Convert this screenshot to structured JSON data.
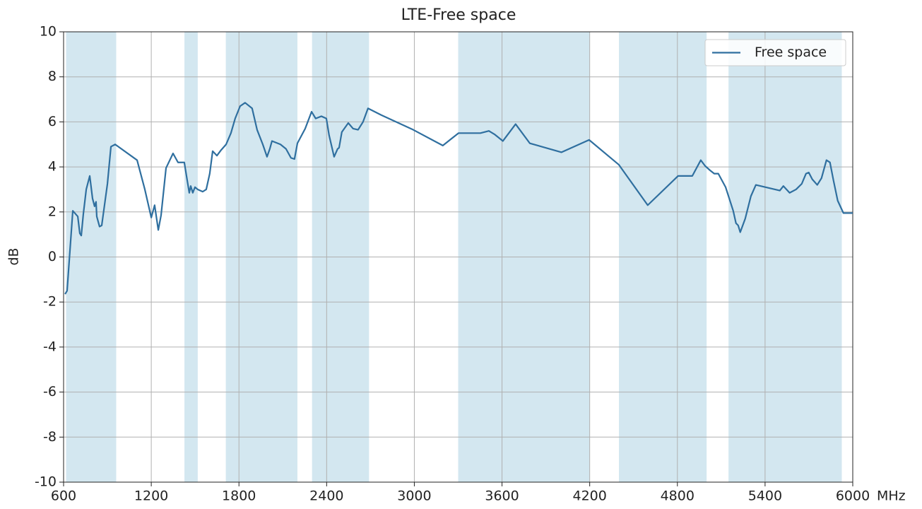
{
  "chart_data": {
    "type": "line",
    "title": "LTE-Free space",
    "y_label": "dB",
    "x_unit": "MHz",
    "xlim": [
      600,
      6000
    ],
    "xticks": [
      600,
      1200,
      1800,
      2400,
      3000,
      3600,
      4200,
      4800,
      5400,
      6000
    ],
    "ylim": [
      -10,
      10
    ],
    "yticks": [
      -10,
      -8,
      -6,
      -4,
      -2,
      0,
      2,
      4,
      6,
      8,
      10
    ],
    "grid": true,
    "legend": "upper right",
    "band_color": "#d3e7f0",
    "shaded_bands": [
      [
        617,
        960
      ],
      [
        1427,
        1518
      ],
      [
        1710,
        2200
      ],
      [
        2300,
        2690
      ],
      [
        3300,
        4200
      ],
      [
        4400,
        5000
      ],
      [
        5150,
        5925
      ]
    ],
    "x": [
      610,
      624,
      663,
      697,
      711,
      721,
      735,
      755,
      779,
      798,
      812,
      822,
      827,
      846,
      861,
      880,
      900,
      924,
      953,
      1103,
      1156,
      1200,
      1223,
      1248,
      1267,
      1301,
      1349,
      1383,
      1426,
      1446,
      1460,
      1470,
      1484,
      1499,
      1518,
      1552,
      1576,
      1600,
      1620,
      1649,
      1678,
      1712,
      1745,
      1774,
      1808,
      1842,
      1890,
      1924,
      1963,
      1992,
      2011,
      2026,
      2084,
      2122,
      2156,
      2180,
      2200,
      2253,
      2297,
      2325,
      2364,
      2398,
      2417,
      2451,
      2475,
      2485,
      2504,
      2548,
      2581,
      2615,
      2649,
      2683,
      2775,
      2992,
      3195,
      3302,
      3452,
      3510,
      3548,
      3606,
      3693,
      3790,
      4007,
      4196,
      4399,
      4597,
      4805,
      4902,
      4960,
      4989,
      5023,
      5052,
      5080,
      5130,
      5182,
      5201,
      5216,
      5230,
      5264,
      5303,
      5337,
      5501,
      5525,
      5568,
      5612,
      5651,
      5680,
      5699,
      5723,
      5757,
      5786,
      5820,
      5844,
      5868,
      5897,
      5936,
      6000
    ],
    "series": [
      {
        "name": "Free space",
        "color": "#2f6f9f",
        "values": [
          -1.65,
          -1.5,
          2.05,
          1.8,
          1.05,
          0.95,
          1.9,
          3.0,
          3.6,
          2.6,
          2.25,
          2.45,
          1.8,
          1.35,
          1.4,
          2.3,
          3.25,
          4.9,
          5.0,
          4.3,
          3.0,
          1.75,
          2.3,
          1.2,
          1.85,
          3.95,
          4.6,
          4.2,
          4.2,
          3.4,
          2.85,
          3.15,
          2.85,
          3.1,
          3.0,
          2.9,
          3.0,
          3.7,
          4.7,
          4.5,
          4.75,
          5.0,
          5.5,
          6.15,
          6.7,
          6.85,
          6.6,
          5.65,
          5.0,
          4.45,
          4.8,
          5.15,
          5.0,
          4.8,
          4.4,
          4.35,
          5.05,
          5.7,
          6.45,
          6.15,
          6.25,
          6.15,
          5.4,
          4.45,
          4.8,
          4.85,
          5.55,
          5.95,
          5.7,
          5.65,
          6.0,
          6.6,
          6.3,
          5.65,
          4.95,
          5.5,
          5.5,
          5.6,
          5.45,
          5.15,
          5.9,
          5.05,
          4.65,
          5.2,
          4.1,
          2.3,
          3.6,
          3.6,
          4.3,
          4.05,
          3.85,
          3.7,
          3.7,
          3.1,
          2.05,
          1.5,
          1.4,
          1.1,
          1.7,
          2.7,
          3.2,
          2.95,
          3.15,
          2.85,
          3.0,
          3.25,
          3.7,
          3.75,
          3.45,
          3.2,
          3.5,
          4.3,
          4.2,
          3.4,
          2.5,
          1.95,
          1.95
        ]
      }
    ]
  }
}
